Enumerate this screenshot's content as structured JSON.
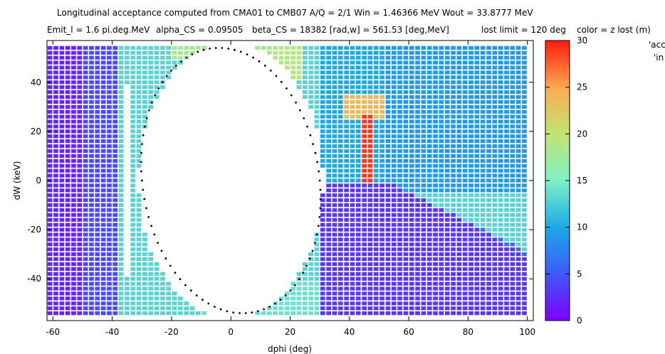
{
  "header": {
    "line1": "Longitudinal acceptance computed from CMA01 to CMB07   A/Q = 2/1   Win = 1.46366 MeV  Wout = 33.8777 MeV",
    "emit": "Emit_l = 1.6 pi.deg.MeV",
    "alpha": "alpha_CS = 0.09505",
    "beta": "beta_CS = 18382 [rad,w] = 561.53 [deg,MeV]",
    "lost_limit": "lost limit = 120 deg",
    "color_label": "color = z lost (m)"
  },
  "legend_fragments": [
    "'acc",
    "'in"
  ],
  "chart_data": {
    "type": "heatmap",
    "xlabel": "dphi (deg)",
    "ylabel": "dW (keV)",
    "xlim": [
      -62,
      102
    ],
    "ylim": [
      -57,
      57
    ],
    "xticks": [
      -60,
      -40,
      -20,
      0,
      20,
      40,
      60,
      80,
      100
    ],
    "yticks": [
      -40,
      -20,
      0,
      20,
      40
    ],
    "grid": false,
    "colorbar": {
      "min": 0,
      "max": 30,
      "ticks": [
        0,
        5,
        10,
        15,
        20,
        25,
        30
      ],
      "label": "color = z lost (m)"
    },
    "grid_cells": {
      "x_start": -61,
      "x_step": 2,
      "nx": 81,
      "y_start": -54,
      "y_step": 2,
      "ny": 55
    },
    "ellipse": {
      "center": [
        0,
        0
      ],
      "x_half_width": 30,
      "y_half_height": 54,
      "points": 90
    }
  }
}
